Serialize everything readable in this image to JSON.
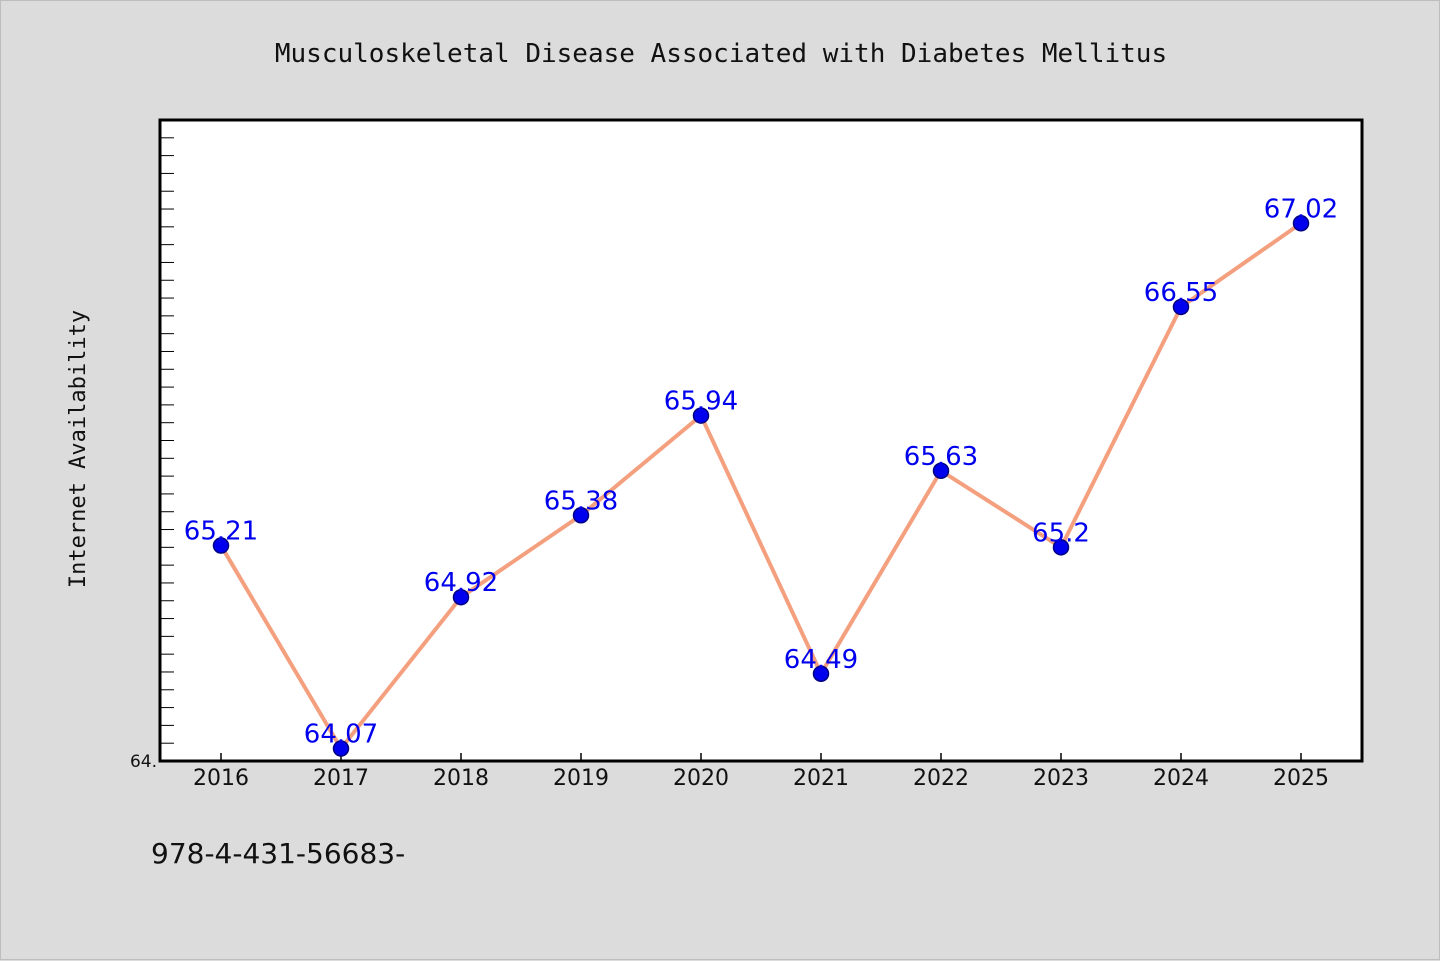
{
  "chart_data": {
    "type": "line",
    "title": "Musculoskeletal Disease Associated with Diabetes Mellitus",
    "xlabel": "",
    "ylabel": "Internet Availability",
    "categories": [
      "2016",
      "2017",
      "2018",
      "2019",
      "2020",
      "2021",
      "2022",
      "2023",
      "2024",
      "2025"
    ],
    "series": [
      {
        "values": [
          65.21,
          64.07,
          64.92,
          65.38,
          65.94,
          64.49,
          65.63,
          65.2,
          66.55,
          67.02
        ],
        "labels": [
          "65.21",
          "64.07",
          "64.92",
          "65.38",
          "65.94",
          "64.49",
          "65.63",
          "65.2",
          "66.55",
          "67.02"
        ]
      }
    ],
    "ylim": [
      64.0,
      67.6
    ],
    "y_tick_labels": [
      "64."
    ],
    "grid": false,
    "legend": "none",
    "colors": {
      "line": "#f4a07f",
      "marker": "#0000ee",
      "marker_edge": "#000080",
      "data_label": "#0000ee",
      "plot_background": "#ffffff",
      "figure_background": "#dcdcdc",
      "axes_edge": "#000000"
    }
  },
  "footer": {
    "text": "978-4-431-56683-"
  }
}
